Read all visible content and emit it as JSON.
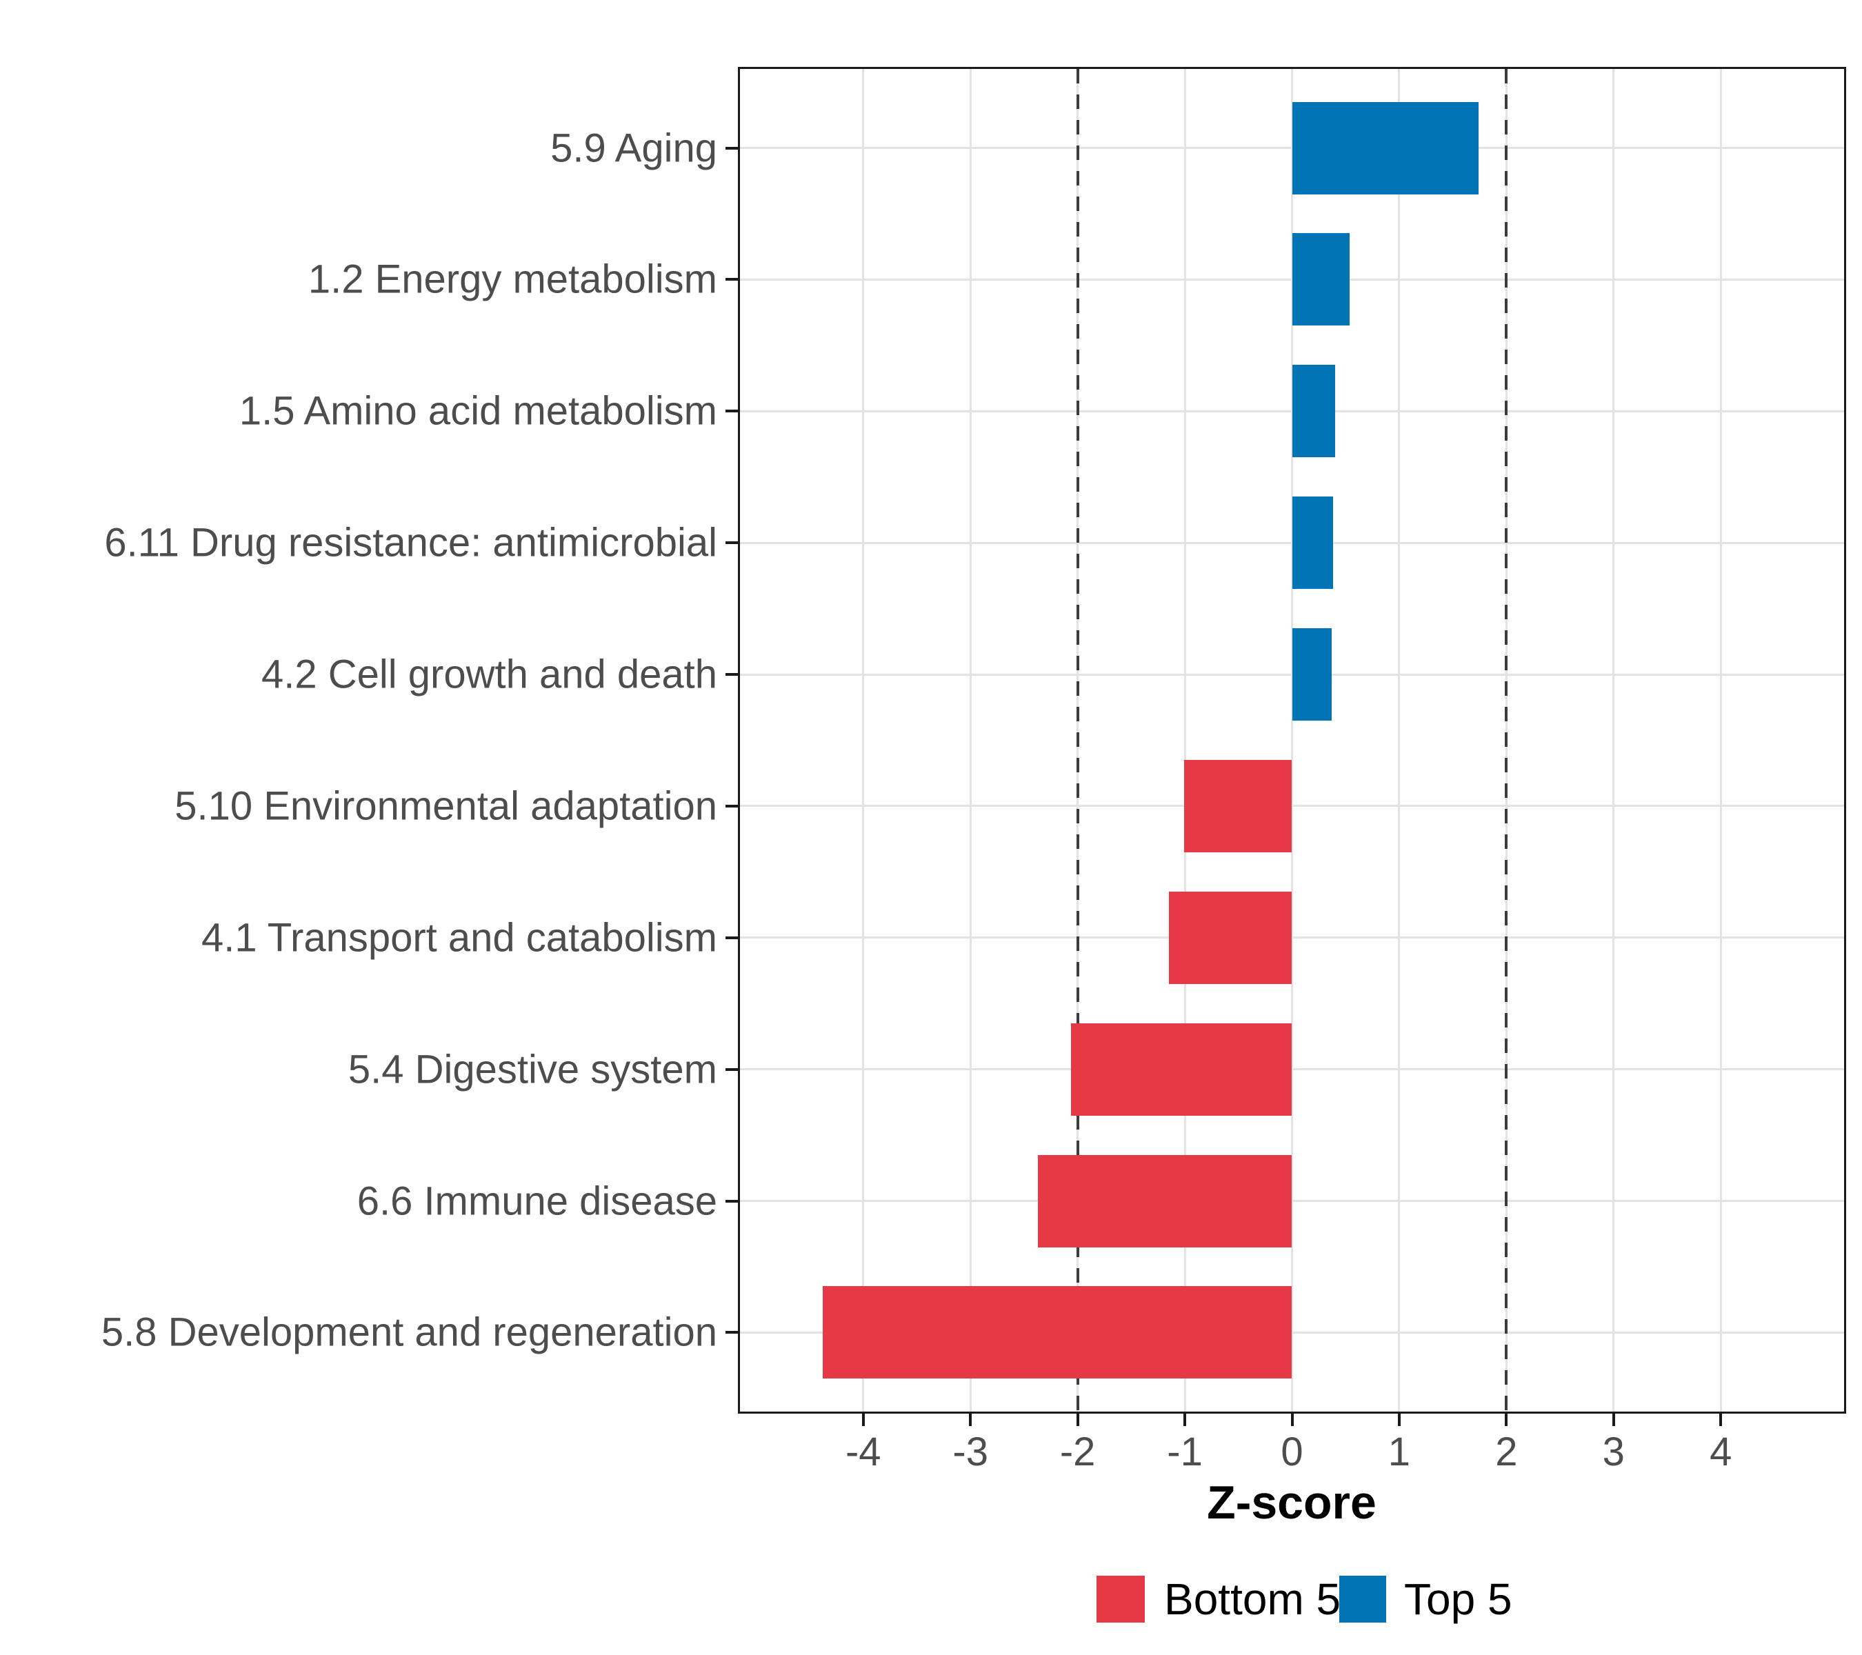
{
  "chart_data": {
    "type": "bar",
    "orientation": "horizontal",
    "title": "",
    "xlabel": "Z-score",
    "ylabel": "",
    "categories": [
      "5.9 Aging",
      "1.2 Energy metabolism",
      "1.5 Amino acid metabolism",
      "6.11 Drug resistance: antimicrobial",
      "4.2 Cell growth and death",
      "5.10 Environmental adaptation",
      "4.1 Transport and catabolism",
      "5.4 Digestive system",
      "6.6 Immune disease",
      "5.8 Development and regeneration"
    ],
    "values": [
      1.74,
      0.54,
      0.4,
      0.38,
      0.37,
      -1.01,
      -1.15,
      -2.06,
      -2.37,
      -4.38
    ],
    "groups": [
      "Top 5",
      "Top 5",
      "Top 5",
      "Top 5",
      "Top 5",
      "Bottom 5",
      "Bottom 5",
      "Bottom 5",
      "Bottom 5",
      "Bottom 5"
    ],
    "x_ticks": [
      -4,
      -3,
      -2,
      -1,
      0,
      1,
      2,
      3,
      4
    ],
    "xlim": [
      -5.15,
      5.15
    ],
    "threshold_lines": [
      -2,
      2
    ],
    "grid": "major-only",
    "bar_width_fraction": 0.7,
    "legend": {
      "position": "bottom",
      "items": [
        {
          "label": "Bottom 5",
          "color": "#e63946"
        },
        {
          "label": "Top 5",
          "color": "#0074b4"
        }
      ]
    },
    "colors": {
      "top5": "#0074b4",
      "bottom5": "#e63946",
      "gridline": "#e3e3e3",
      "axis_text": "#4d4d4d",
      "threshold": "#3c3c3c",
      "panel_border": "#1a1a1a"
    }
  }
}
